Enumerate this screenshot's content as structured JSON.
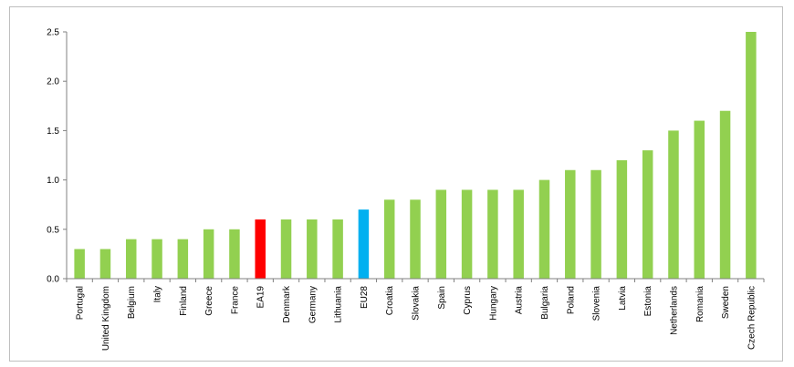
{
  "chart_data": {
    "type": "bar",
    "title": "",
    "xlabel": "",
    "ylabel": "",
    "ylim": [
      0,
      2.5
    ],
    "yticks": [
      "0.0",
      "0.5",
      "1.0",
      "1.5",
      "2.0",
      "2.5"
    ],
    "grid": false,
    "categories": [
      "Portugal",
      "United Kingdom",
      "Belgium",
      "Italy",
      "Finland",
      "Greece",
      "France",
      "EA19",
      "Denmark",
      "Germany",
      "Lithuania",
      "EU28",
      "Croatia",
      "Slovakia",
      "Spain",
      "Cyprus",
      "Hungary",
      "Austria",
      "Bulgaria",
      "Poland",
      "Slovenia",
      "Latvia",
      "Estonia",
      "Netherlands",
      "Romania",
      "Sweden",
      "Czech Republic"
    ],
    "values": [
      0.3,
      0.3,
      0.4,
      0.4,
      0.4,
      0.5,
      0.5,
      0.6,
      0.6,
      0.6,
      0.6,
      0.7,
      0.8,
      0.8,
      0.9,
      0.9,
      0.9,
      0.9,
      1.0,
      1.1,
      1.1,
      1.2,
      1.3,
      1.5,
      1.6,
      1.7,
      2.5
    ],
    "colors": {
      "default": "#92d050",
      "EA19": "#ff0000",
      "EU28": "#00b0f0",
      "axis": "#808080"
    }
  }
}
